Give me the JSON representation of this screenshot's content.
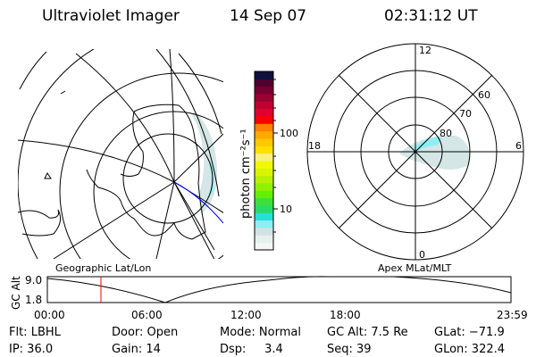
{
  "header": {
    "instrument": "Ultraviolet Imager",
    "date": "14 Sep 07",
    "time": "02:31:12 UT"
  },
  "colorbar": {
    "unit_label": "photon cm⁻²s⁻¹",
    "ticks": [
      "100",
      "10"
    ],
    "colors": [
      "#f4f8f4",
      "#e6f0ec",
      "#d2e2e2",
      "#8eeef4",
      "#28e0d8",
      "#26dc66",
      "#3ce03c",
      "#60f000",
      "#90f000",
      "#b8f000",
      "#d8f400",
      "#f2f800",
      "#f8f080",
      "#ffe000",
      "#ffc800",
      "#ffa800",
      "#ff8000",
      "#ff0000",
      "#e00030",
      "#c00030",
      "#9c0030",
      "#780030",
      "#500030",
      "#101040"
    ]
  },
  "polar": {
    "mlt_labels": {
      "top": "12",
      "left": "18",
      "right": "6",
      "bottom": "0"
    },
    "lat_labels": [
      "60",
      "70",
      "80"
    ]
  },
  "panels": {
    "left_label": "Geographic Lat/Lon",
    "right_label": "Apex MLat/MLT"
  },
  "altitude": {
    "ylabel": "GC Alt",
    "yticks": [
      "9.0",
      "1.8"
    ],
    "xticks": [
      "00:00",
      "06:00",
      "12:00",
      "18:00",
      "23:59"
    ],
    "marker_color": "#ff0000"
  },
  "info": {
    "row1": [
      "Flt: LBHL",
      "Door: Open",
      "Mode: Normal",
      "GC Alt: 7.5 Re",
      "GLat: −71.9"
    ],
    "row2": [
      "IP: 36.0",
      "Gain: 14",
      "Dsp:     3.4",
      "Seq: 39",
      "GLon: 322.4"
    ]
  }
}
